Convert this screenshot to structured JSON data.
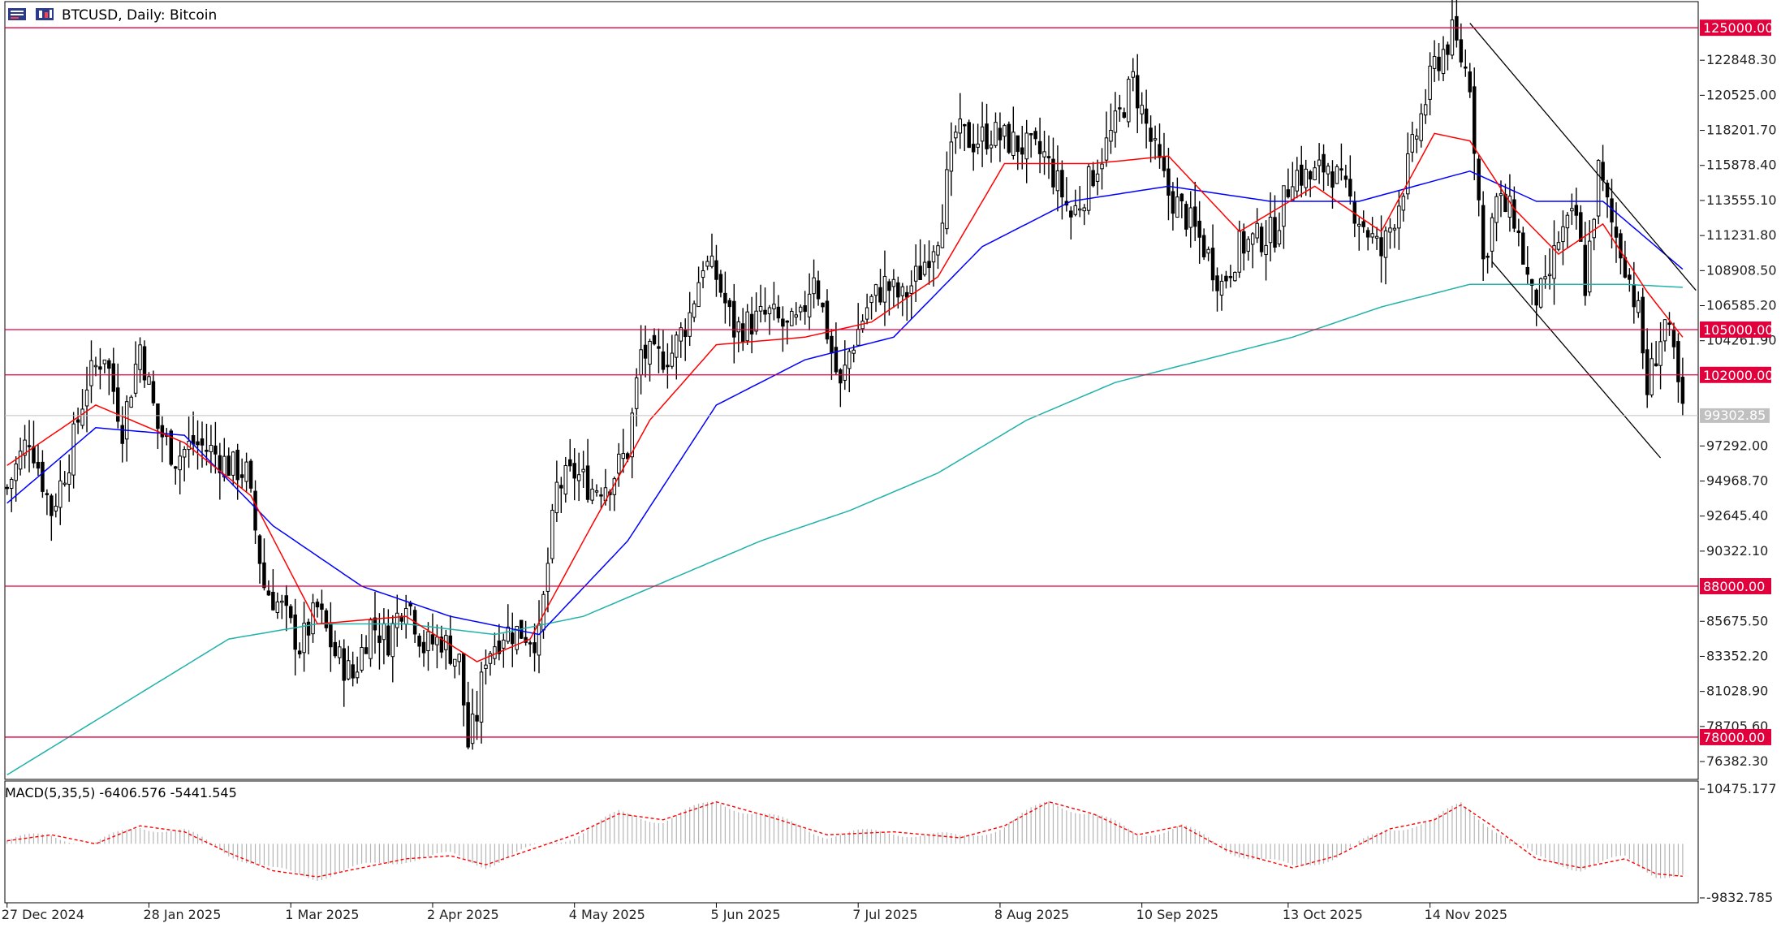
{
  "toolbar": {
    "title": "BTCUSD, Daily:  Bitcoin",
    "icons": [
      "chart-window-icon",
      "candlestick-icon"
    ]
  },
  "colors": {
    "background": "#ffffff",
    "candle": "#000000",
    "ema_fast": "#ff0000",
    "ema_mid": "#0000ff",
    "sma_long": "#20b2aa",
    "level_line": "#e0003c",
    "level_label_bg": "#e0003c",
    "bid_line": "#c0c0c0",
    "macd_hist": "#b4b4b4",
    "macd_signal": "#ff0000"
  },
  "chart_data": {
    "type": "candlestick",
    "symbol": "BTCUSD",
    "timeframe": "Daily",
    "title": "BTCUSD, Daily:  Bitcoin",
    "ylim": [
      75200,
      126300
    ],
    "y_ticks": [
      "122848.30",
      "120525.00",
      "118201.70",
      "115878.40",
      "113555.10",
      "111231.80",
      "108908.50",
      "106585.20",
      "104261.90",
      "97292.00",
      "94968.70",
      "92645.40",
      "90322.10",
      "85675.50",
      "83352.20",
      "81028.90",
      "78705.60",
      "76382.30"
    ],
    "x_ticks": [
      "27 Dec 2024",
      "28 Jan 2025",
      "1 Mar 2025",
      "2 Apr 2025",
      "4 May 2025",
      "5 Jun 2025",
      "7 Jul 2025",
      "8 Aug 2025",
      "10 Sep 2025",
      "13 Oct 2025",
      "14 Nov 2025"
    ],
    "x_ticks_y": [
      27,
      28,
      1,
      2,
      4,
      5,
      7,
      8,
      10,
      13,
      14
    ],
    "horizontal_levels": [
      {
        "price": 125000,
        "label": "125000.00"
      },
      {
        "price": 105000,
        "label": "105000.00"
      },
      {
        "price": 102000,
        "label": "102000.00"
      },
      {
        "price": 88000,
        "label": "88000.00"
      },
      {
        "price": 78000,
        "label": "78000.00"
      }
    ],
    "bid": {
      "price": 99302.85,
      "label": "99302.85"
    },
    "close_path": [
      [
        0,
        94500
      ],
      [
        5,
        98000
      ],
      [
        10,
        93000
      ],
      [
        14,
        96500
      ],
      [
        18,
        101500
      ],
      [
        22,
        103500
      ],
      [
        26,
        98500
      ],
      [
        30,
        104000
      ],
      [
        34,
        98500
      ],
      [
        38,
        96500
      ],
      [
        42,
        97500
      ],
      [
        46,
        97000
      ],
      [
        50,
        96000
      ],
      [
        54,
        95500
      ],
      [
        58,
        88000
      ],
      [
        62,
        86500
      ],
      [
        66,
        84000
      ],
      [
        70,
        86500
      ],
      [
        74,
        83500
      ],
      [
        78,
        82000
      ],
      [
        82,
        85500
      ],
      [
        86,
        84500
      ],
      [
        90,
        87500
      ],
      [
        94,
        84000
      ],
      [
        98,
        84500
      ],
      [
        102,
        83000
      ],
      [
        104,
        77500
      ],
      [
        106,
        79500
      ],
      [
        108,
        83500
      ],
      [
        112,
        85000
      ],
      [
        116,
        85000
      ],
      [
        120,
        84500
      ],
      [
        124,
        94500
      ],
      [
        128,
        95500
      ],
      [
        132,
        94500
      ],
      [
        136,
        95000
      ],
      [
        140,
        97000
      ],
      [
        143,
        103500
      ],
      [
        146,
        103000
      ],
      [
        150,
        103500
      ],
      [
        154,
        106000
      ],
      [
        157,
        109500
      ],
      [
        160,
        108500
      ],
      [
        164,
        105000
      ],
      [
        168,
        105500
      ],
      [
        172,
        106000
      ],
      [
        176,
        105000
      ],
      [
        179,
        105500
      ],
      [
        182,
        109000
      ],
      [
        186,
        103500
      ],
      [
        188,
        101000
      ],
      [
        190,
        103500
      ],
      [
        194,
        106500
      ],
      [
        198,
        108000
      ],
      [
        202,
        107000
      ],
      [
        206,
        108900
      ],
      [
        210,
        111500
      ],
      [
        214,
        118000
      ],
      [
        218,
        117500
      ],
      [
        222,
        118000
      ],
      [
        226,
        117500
      ],
      [
        230,
        117000
      ],
      [
        234,
        116500
      ],
      [
        238,
        114000
      ],
      [
        240,
        112500
      ],
      [
        242,
        113500
      ],
      [
        246,
        116000
      ],
      [
        250,
        118500
      ],
      [
        254,
        121500
      ],
      [
        258,
        117500
      ],
      [
        262,
        114000
      ],
      [
        266,
        112500
      ],
      [
        270,
        110500
      ],
      [
        274,
        108000
      ],
      [
        278,
        110500
      ],
      [
        282,
        111000
      ],
      [
        286,
        111500
      ],
      [
        290,
        115500
      ],
      [
        294,
        115000
      ],
      [
        298,
        116000
      ],
      [
        302,
        114000
      ],
      [
        306,
        112000
      ],
      [
        310,
        110000
      ],
      [
        314,
        113500
      ],
      [
        318,
        118000
      ],
      [
        322,
        122500
      ],
      [
        326,
        124500
      ],
      [
        328,
        123000
      ],
      [
        330,
        121500
      ],
      [
        333,
        109500
      ],
      [
        336,
        113500
      ],
      [
        340,
        112500
      ],
      [
        344,
        107000
      ],
      [
        347,
        107500
      ],
      [
        350,
        111000
      ],
      [
        354,
        112500
      ],
      [
        356,
        108000
      ],
      [
        359,
        115500
      ],
      [
        362,
        112000
      ],
      [
        365,
        109500
      ],
      [
        368,
        106000
      ],
      [
        370,
        101000
      ],
      [
        372,
        103500
      ],
      [
        374,
        105500
      ],
      [
        376,
        103000
      ],
      [
        378,
        99300
      ]
    ],
    "ema_fast_path": [
      [
        0,
        96000
      ],
      [
        20,
        100000
      ],
      [
        40,
        97500
      ],
      [
        55,
        94000
      ],
      [
        70,
        85500
      ],
      [
        90,
        86000
      ],
      [
        106,
        83000
      ],
      [
        118,
        84500
      ],
      [
        130,
        91000
      ],
      [
        145,
        99000
      ],
      [
        160,
        104000
      ],
      [
        180,
        104500
      ],
      [
        195,
        105500
      ],
      [
        210,
        108500
      ],
      [
        225,
        116000
      ],
      [
        245,
        116000
      ],
      [
        262,
        116500
      ],
      [
        278,
        111500
      ],
      [
        295,
        114500
      ],
      [
        310,
        111500
      ],
      [
        322,
        118000
      ],
      [
        330,
        117500
      ],
      [
        340,
        113000
      ],
      [
        350,
        110000
      ],
      [
        360,
        112000
      ],
      [
        370,
        107500
      ],
      [
        378,
        104500
      ]
    ],
    "ema_mid_path": [
      [
        0,
        93500
      ],
      [
        20,
        98500
      ],
      [
        40,
        98000
      ],
      [
        60,
        92000
      ],
      [
        80,
        88000
      ],
      [
        100,
        86000
      ],
      [
        120,
        84800
      ],
      [
        140,
        91000
      ],
      [
        160,
        100000
      ],
      [
        180,
        103000
      ],
      [
        200,
        104500
      ],
      [
        220,
        110500
      ],
      [
        240,
        113500
      ],
      [
        262,
        114500
      ],
      [
        285,
        113500
      ],
      [
        305,
        113500
      ],
      [
        330,
        115500
      ],
      [
        345,
        113500
      ],
      [
        360,
        113500
      ],
      [
        378,
        109000
      ]
    ],
    "sma_long_path": [
      [
        0,
        75500
      ],
      [
        25,
        80000
      ],
      [
        50,
        84500
      ],
      [
        70,
        85500
      ],
      [
        90,
        85500
      ],
      [
        110,
        84800
      ],
      [
        130,
        86000
      ],
      [
        150,
        88500
      ],
      [
        170,
        91000
      ],
      [
        190,
        93000
      ],
      [
        210,
        95500
      ],
      [
        230,
        99000
      ],
      [
        250,
        101500
      ],
      [
        270,
        103000
      ],
      [
        290,
        104500
      ],
      [
        310,
        106500
      ],
      [
        330,
        108000
      ],
      [
        350,
        108000
      ],
      [
        365,
        108000
      ],
      [
        378,
        107800
      ]
    ],
    "trend_channel": [
      {
        "from": [
          330,
          125300
        ],
        "to": [
          381,
          107600
        ]
      },
      {
        "from": [
          335,
          109500
        ],
        "to": [
          373,
          96500
        ]
      }
    ],
    "macd": {
      "label": "MACD(5,35,5) -6406.576 -5441.545",
      "ylim": [
        -9832.785,
        10475.177
      ],
      "y_ticks": [
        "10475.177",
        "-9832.785"
      ],
      "signal_path": [
        [
          0,
          500
        ],
        [
          10,
          1500
        ],
        [
          20,
          0
        ],
        [
          30,
          3000
        ],
        [
          40,
          2000
        ],
        [
          50,
          -1500
        ],
        [
          60,
          -4500
        ],
        [
          70,
          -5500
        ],
        [
          80,
          -4000
        ],
        [
          90,
          -2500
        ],
        [
          100,
          -2000
        ],
        [
          108,
          -3500
        ],
        [
          118,
          -1000
        ],
        [
          128,
          1500
        ],
        [
          138,
          5000
        ],
        [
          148,
          4000
        ],
        [
          160,
          7000
        ],
        [
          172,
          4500
        ],
        [
          185,
          1500
        ],
        [
          200,
          2000
        ],
        [
          215,
          1000
        ],
        [
          225,
          3000
        ],
        [
          235,
          7000
        ],
        [
          245,
          5000
        ],
        [
          255,
          1500
        ],
        [
          265,
          3000
        ],
        [
          275,
          -1000
        ],
        [
          290,
          -4000
        ],
        [
          300,
          -2000
        ],
        [
          312,
          2500
        ],
        [
          322,
          4000
        ],
        [
          328,
          6500
        ],
        [
          335,
          3000
        ],
        [
          345,
          -2500
        ],
        [
          355,
          -4000
        ],
        [
          365,
          -2500
        ],
        [
          372,
          -5000
        ],
        [
          378,
          -5400
        ]
      ]
    }
  }
}
